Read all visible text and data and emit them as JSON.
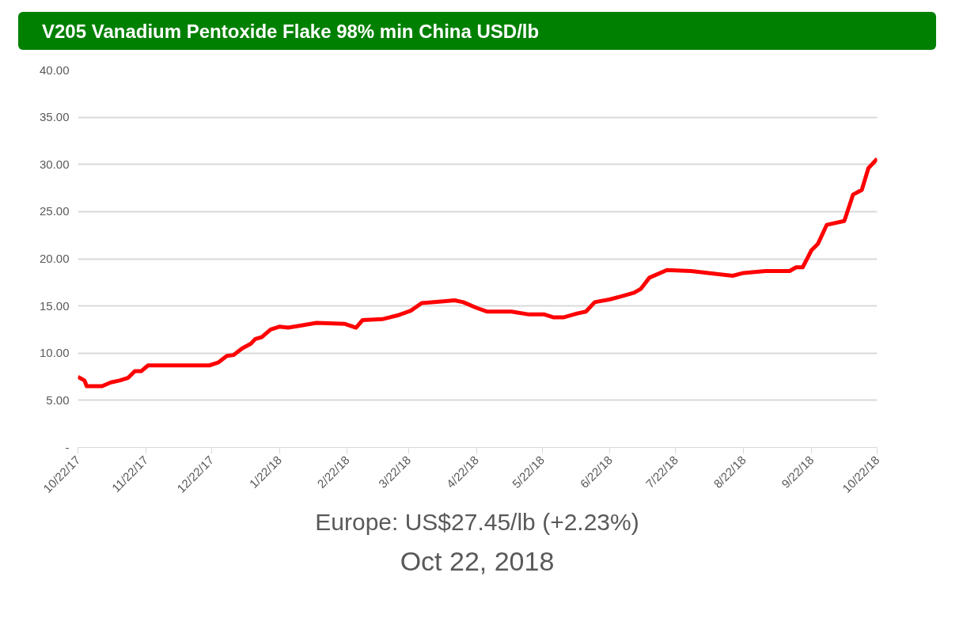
{
  "chart_data": {
    "type": "line",
    "title": "V205 Vanadium Pentoxide Flake 98% min China USD/lb",
    "x": [
      "2017-10-22",
      "2017-10-25",
      "2017-10-26",
      "2017-11-02",
      "2017-11-06",
      "2017-11-10",
      "2017-11-14",
      "2017-11-17",
      "2017-11-20",
      "2017-11-23",
      "2017-12-21",
      "2017-12-25",
      "2017-12-29",
      "2018-01-01",
      "2018-01-05",
      "2018-01-09",
      "2018-01-11",
      "2018-01-14",
      "2018-01-18",
      "2018-01-22",
      "2018-01-26",
      "2018-01-31",
      "2018-02-08",
      "2018-02-21",
      "2018-02-26",
      "2018-03-01",
      "2018-03-10",
      "2018-03-17",
      "2018-03-23",
      "2018-03-28",
      "2018-04-07",
      "2018-04-12",
      "2018-04-16",
      "2018-04-22",
      "2018-04-27",
      "2018-05-08",
      "2018-05-16",
      "2018-05-23",
      "2018-05-27",
      "2018-06-01",
      "2018-06-07",
      "2018-06-11",
      "2018-06-15",
      "2018-06-22",
      "2018-06-27",
      "2018-07-03",
      "2018-07-06",
      "2018-07-10",
      "2018-07-18",
      "2018-07-29",
      "2018-08-09",
      "2018-08-17",
      "2018-08-22",
      "2018-09-01",
      "2018-09-12",
      "2018-09-15",
      "2018-09-18",
      "2018-09-22",
      "2018-09-25",
      "2018-09-29",
      "2018-10-07",
      "2018-10-08",
      "2018-10-11",
      "2018-10-15",
      "2018-10-18",
      "2018-10-22"
    ],
    "series": [
      {
        "color": "#ff0000",
        "values": [
          7.5,
          7.1,
          6.5,
          6.5,
          6.9,
          7.1,
          7.4,
          8.1,
          8.1,
          8.7,
          8.7,
          9.0,
          9.7,
          9.8,
          10.5,
          11.0,
          11.5,
          11.7,
          12.5,
          12.8,
          12.7,
          12.9,
          13.2,
          13.1,
          12.7,
          13.5,
          13.6,
          14.0,
          14.5,
          15.3,
          15.5,
          15.6,
          15.4,
          14.8,
          14.4,
          14.4,
          14.1,
          14.1,
          13.8,
          13.8,
          14.2,
          14.4,
          15.4,
          15.7,
          16.0,
          16.4,
          16.8,
          18.0,
          18.8,
          18.7,
          18.4,
          18.2,
          18.5,
          18.7,
          18.7,
          19.1,
          19.1,
          20.9,
          21.6,
          23.6,
          24.0,
          24.7,
          26.8,
          27.3,
          29.6,
          30.6
        ]
      }
    ],
    "xlim": [
      "2017-10-22",
      "2018-10-22"
    ],
    "xticks": [
      {
        "value": "2017-10-22",
        "label": "10/22/17"
      },
      {
        "value": "2017-11-22",
        "label": "11/22/17"
      },
      {
        "value": "2017-12-22",
        "label": "12/22/17"
      },
      {
        "value": "2018-01-22",
        "label": "1/22/18"
      },
      {
        "value": "2018-02-22",
        "label": "2/22/18"
      },
      {
        "value": "2018-03-22",
        "label": "3/22/18"
      },
      {
        "value": "2018-04-22",
        "label": "4/22/18"
      },
      {
        "value": "2018-05-22",
        "label": "5/22/18"
      },
      {
        "value": "2018-06-22",
        "label": "6/22/18"
      },
      {
        "value": "2018-07-22",
        "label": "7/22/18"
      },
      {
        "value": "2018-08-22",
        "label": "8/22/18"
      },
      {
        "value": "2018-09-22",
        "label": "9/22/18"
      },
      {
        "value": "2018-10-22",
        "label": "10/22/18"
      }
    ],
    "ylim": [
      0,
      40
    ],
    "yticks": [
      {
        "value": 0,
        "label": "-"
      },
      {
        "value": 5,
        "label": "5.00"
      },
      {
        "value": 10,
        "label": "10.00"
      },
      {
        "value": 15,
        "label": "15.00"
      },
      {
        "value": 20,
        "label": "20.00"
      },
      {
        "value": 25,
        "label": "25.00"
      },
      {
        "value": 30,
        "label": "30.00"
      },
      {
        "value": 35,
        "label": "35.00"
      },
      {
        "value": 40,
        "label": "40.00"
      }
    ],
    "grid": "y",
    "marker": "none",
    "line_style": "solid",
    "annotations": [
      "Europe: US$27.45/lb (+2.23%)",
      "Oct 22, 2018"
    ]
  }
}
